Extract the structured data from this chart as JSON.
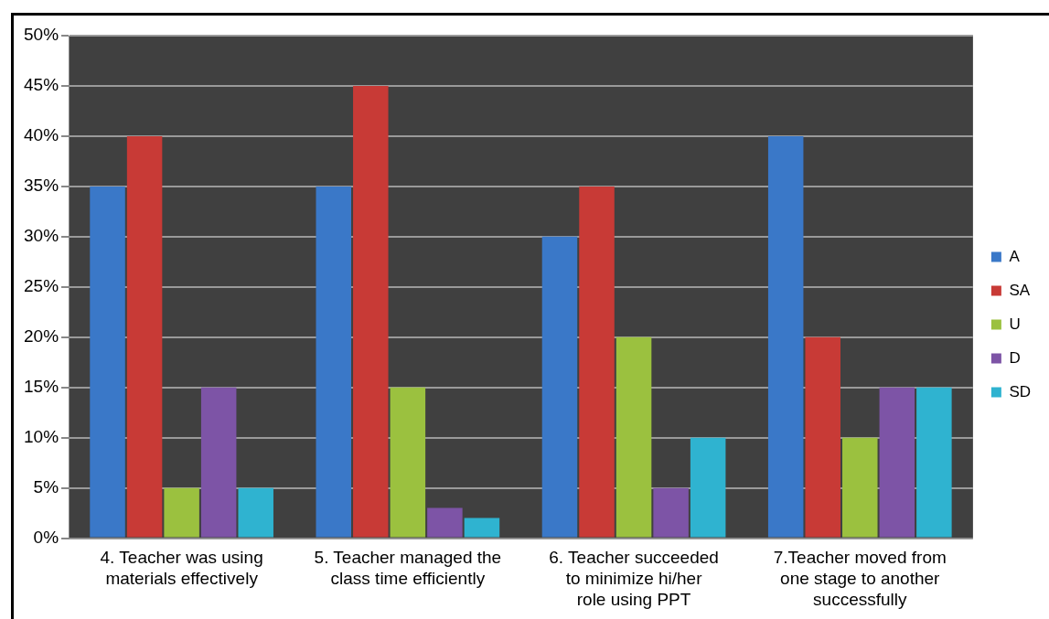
{
  "chart_data": {
    "type": "bar",
    "categories": [
      "4. Teacher was using materials effectively",
      "5. Teacher managed the class time efficiently",
      "6. Teacher succeeded to minimize hi/her role using PPT",
      "7.Teacher moved from one stage to another successfully"
    ],
    "series": [
      {
        "name": "A",
        "color": "#3a78c8",
        "values": [
          35,
          35,
          30,
          40
        ]
      },
      {
        "name": "SA",
        "color": "#c83a36",
        "values": [
          40,
          45,
          35,
          20
        ]
      },
      {
        "name": "U",
        "color": "#9bc13f",
        "values": [
          5,
          15,
          20,
          10
        ]
      },
      {
        "name": "D",
        "color": "#7d54a6",
        "values": [
          15,
          3,
          5,
          15
        ]
      },
      {
        "name": "SD",
        "color": "#2fb3d0",
        "values": [
          5,
          2,
          10,
          15
        ]
      }
    ],
    "ylim": [
      0,
      50
    ],
    "yticks": [
      {
        "value": 0,
        "label": "0%"
      },
      {
        "value": 5,
        "label": "5%"
      },
      {
        "value": 10,
        "label": "10%"
      },
      {
        "value": 15,
        "label": "15%"
      },
      {
        "value": 20,
        "label": "20%"
      },
      {
        "value": 25,
        "label": "25%"
      },
      {
        "value": 30,
        "label": "30%"
      },
      {
        "value": 35,
        "label": "35%"
      },
      {
        "value": 40,
        "label": "40%"
      },
      {
        "value": 45,
        "label": "45%"
      },
      {
        "value": 50,
        "label": "50%"
      }
    ],
    "grid": "y",
    "legend": "right"
  }
}
